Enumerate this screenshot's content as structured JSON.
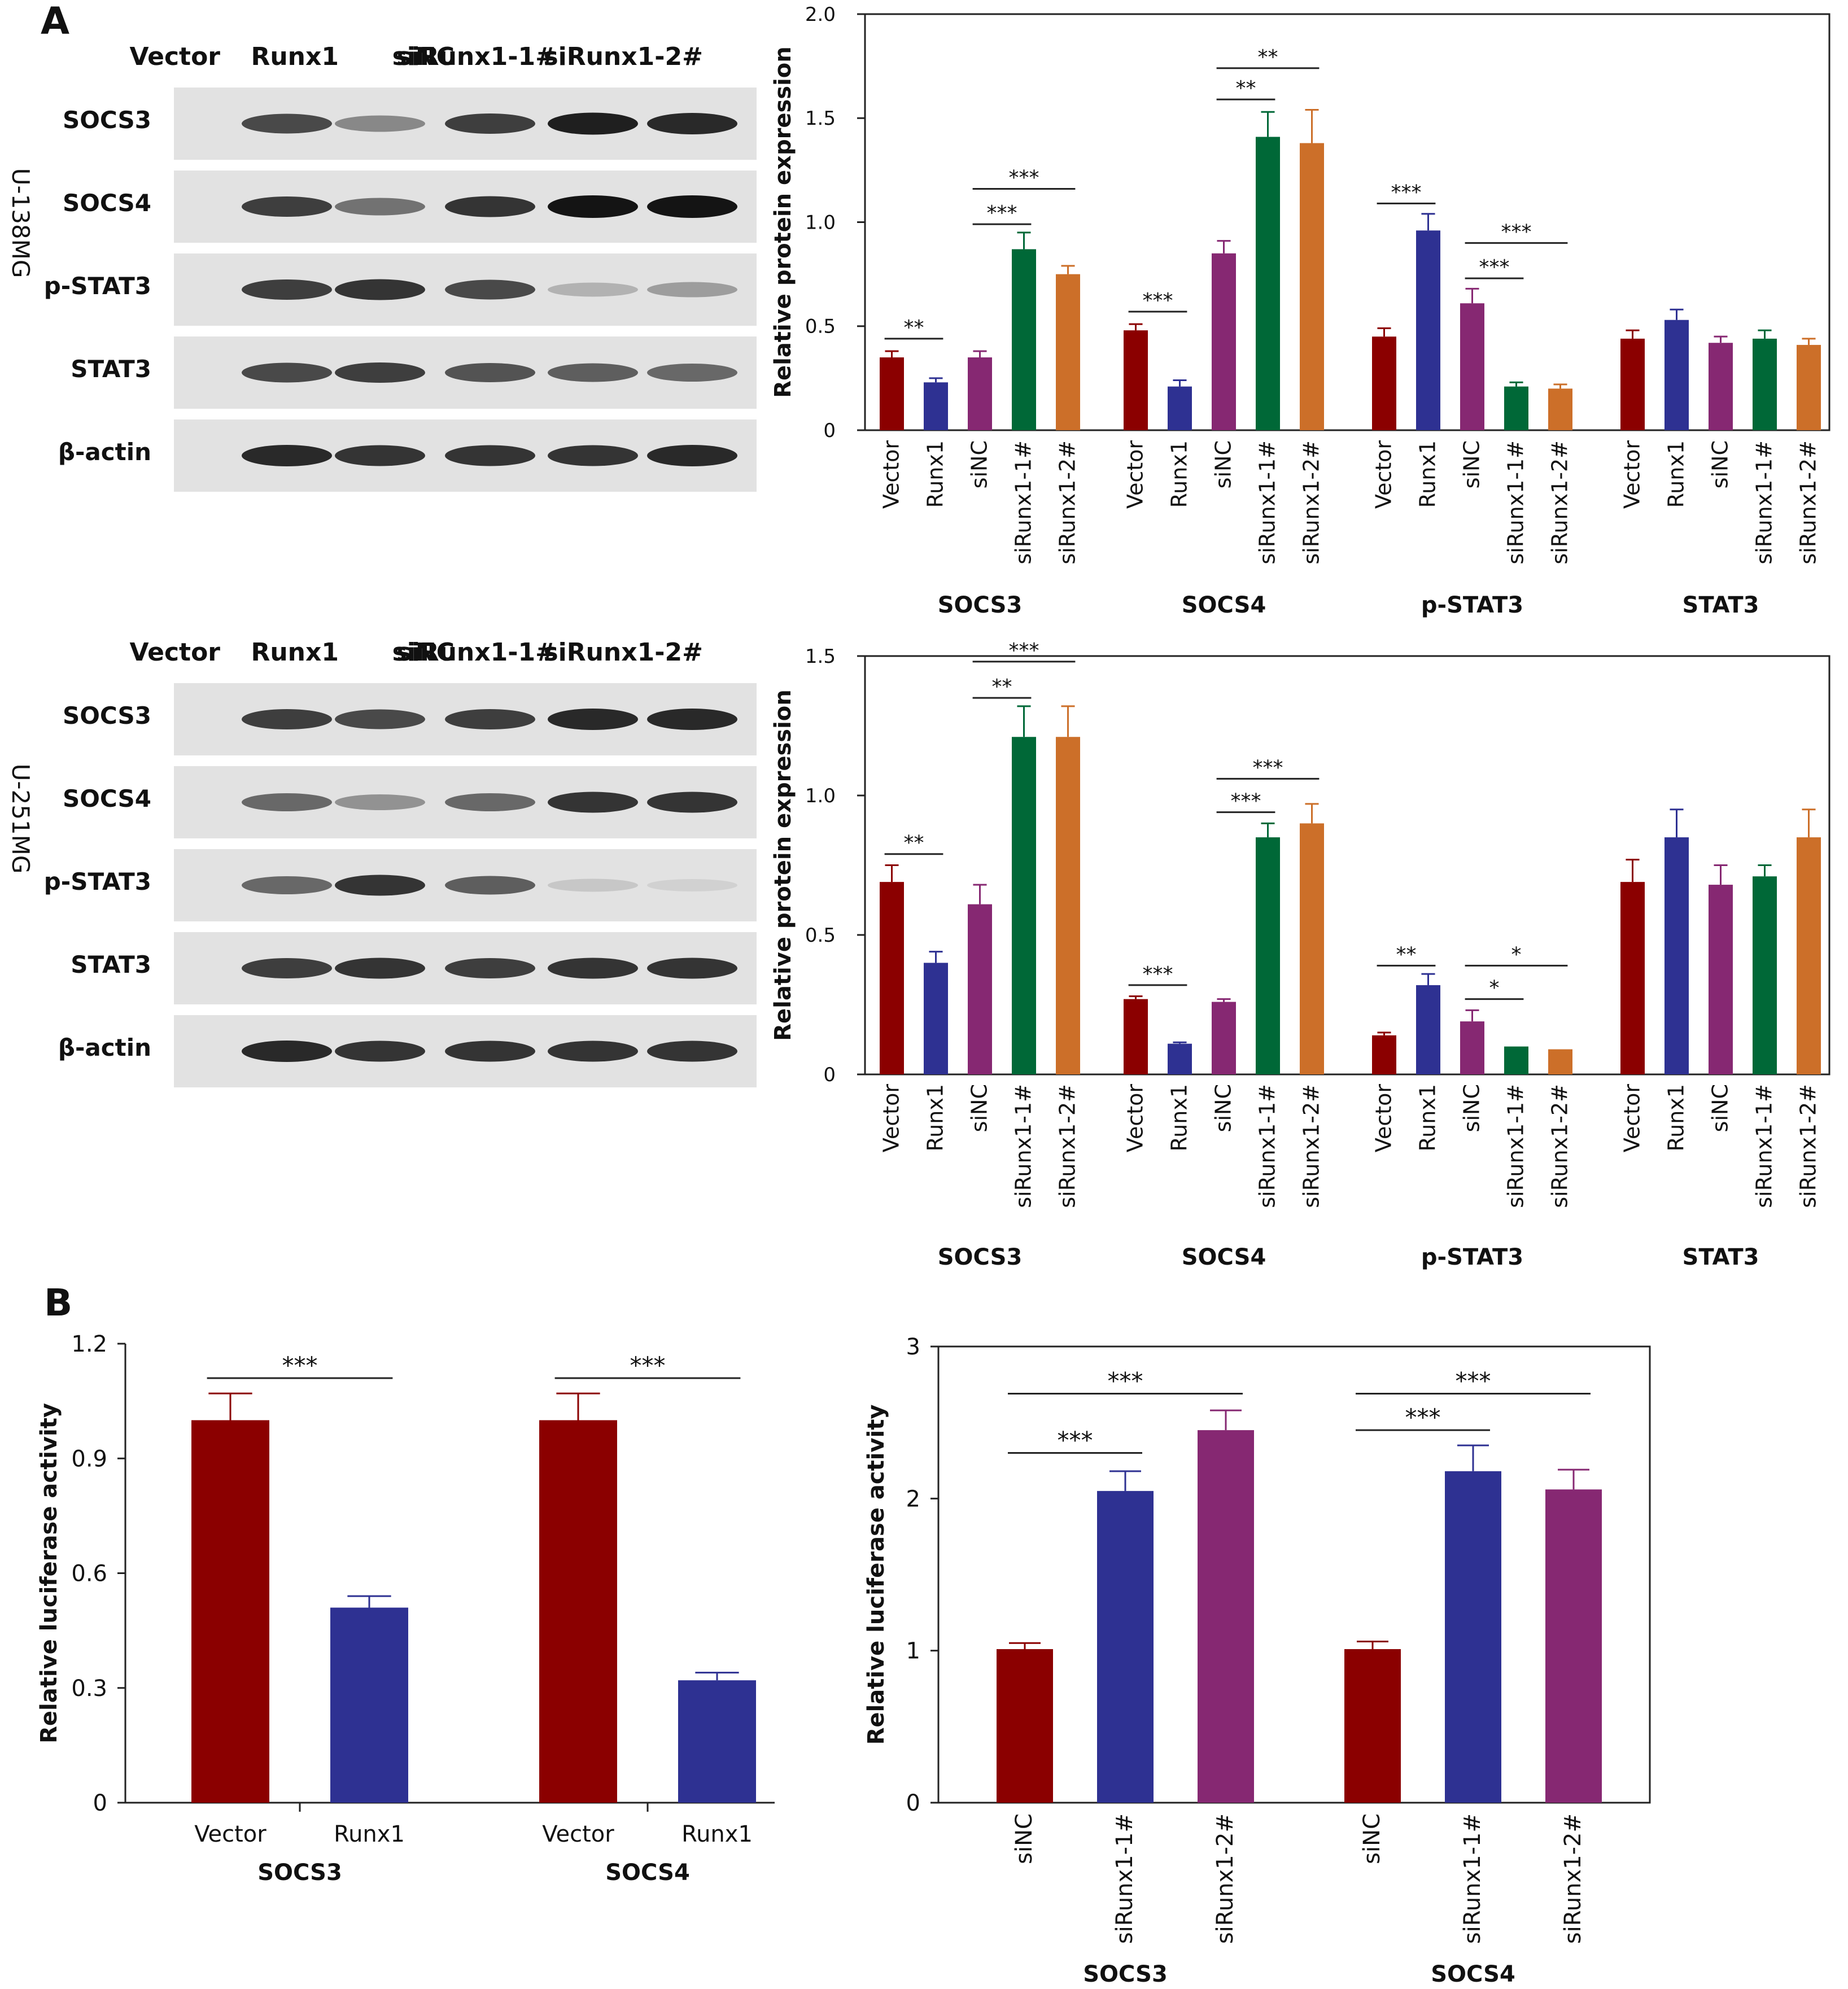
{
  "panels": {
    "A": "A",
    "B": "B"
  },
  "blot_lanes": [
    "Vector",
    "Runx1",
    "siNC",
    "siRunx1-1#",
    "siRunx1-2#"
  ],
  "blot_proteins": [
    "SOCS3",
    "SOCS4",
    "p-STAT3",
    "STAT3",
    "β-actin"
  ],
  "cell_lines": [
    "U-138MG",
    "U-251MG"
  ],
  "blot_intensities": {
    "U-138MG": {
      "SOCS3": [
        0.75,
        0.45,
        0.8,
        0.95,
        0.9
      ],
      "SOCS4": [
        0.8,
        0.55,
        0.85,
        1.0,
        1.0
      ],
      "p-STAT3": [
        0.8,
        0.85,
        0.75,
        0.25,
        0.35
      ],
      "STAT3": [
        0.75,
        0.8,
        0.7,
        0.65,
        0.6
      ],
      "β-actin": [
        0.9,
        0.85,
        0.85,
        0.85,
        0.9
      ]
    },
    "U-251MG": {
      "SOCS3": [
        0.8,
        0.75,
        0.8,
        0.9,
        0.9
      ],
      "SOCS4": [
        0.6,
        0.4,
        0.6,
        0.85,
        0.85
      ],
      "p-STAT3": [
        0.6,
        0.85,
        0.65,
        0.15,
        0.1
      ],
      "STAT3": [
        0.8,
        0.85,
        0.8,
        0.85,
        0.85
      ],
      "β-actin": [
        0.9,
        0.85,
        0.85,
        0.85,
        0.85
      ]
    }
  },
  "chart_data": [
    {
      "type": "bar",
      "ylabel": "Relative protein expression",
      "ylim": [
        0,
        2.0
      ],
      "yticks": [
        "0",
        "0.5",
        "1.0",
        "1.5",
        "2.0"
      ],
      "bar_labels": [
        "Vector",
        "Runx1",
        "siNC",
        "siRunx1-1#",
        "siRunx1-2#"
      ],
      "colors": [
        "#8b0000",
        "#2e3192",
        "#862872",
        "#006837",
        "#cc6f29"
      ],
      "groups": [
        {
          "name": "SOCS3",
          "values": [
            0.35,
            0.23,
            0.35,
            0.87,
            0.75
          ],
          "errors": [
            0.03,
            0.02,
            0.03,
            0.08,
            0.04
          ]
        },
        {
          "name": "SOCS4",
          "values": [
            0.48,
            0.21,
            0.85,
            1.41,
            1.38
          ],
          "errors": [
            0.03,
            0.03,
            0.06,
            0.12,
            0.16
          ]
        },
        {
          "name": "p-STAT3",
          "values": [
            0.45,
            0.96,
            0.61,
            0.21,
            0.2
          ],
          "errors": [
            0.04,
            0.08,
            0.07,
            0.02,
            0.02
          ]
        },
        {
          "name": "STAT3",
          "values": [
            0.44,
            0.53,
            0.42,
            0.44,
            0.41
          ],
          "errors": [
            0.04,
            0.05,
            0.03,
            0.04,
            0.03
          ]
        }
      ],
      "significance": [
        {
          "group": 0,
          "from": 0,
          "to": 1,
          "label": "**",
          "y": 0.44
        },
        {
          "group": 0,
          "from": 2,
          "to": 3,
          "label": "***",
          "y": 0.99
        },
        {
          "group": 0,
          "from": 2,
          "to": 4,
          "label": "***",
          "y": 1.16
        },
        {
          "group": 1,
          "from": 0,
          "to": 1,
          "label": "***",
          "y": 0.57
        },
        {
          "group": 1,
          "from": 2,
          "to": 3,
          "label": "**",
          "y": 1.59
        },
        {
          "group": 1,
          "from": 2,
          "to": 4,
          "label": "**",
          "y": 1.74
        },
        {
          "group": 2,
          "from": 0,
          "to": 1,
          "label": "***",
          "y": 1.09
        },
        {
          "group": 2,
          "from": 2,
          "to": 3,
          "label": "***",
          "y": 0.73
        },
        {
          "group": 2,
          "from": 2,
          "to": 4,
          "label": "***",
          "y": 0.9
        }
      ]
    },
    {
      "type": "bar",
      "ylabel": "Relative protein expression",
      "ylim": [
        0,
        1.5
      ],
      "yticks": [
        "0",
        "0.5",
        "1.0",
        "1.5"
      ],
      "bar_labels": [
        "Vector",
        "Runx1",
        "siNC",
        "siRunx1-1#",
        "siRunx1-2#"
      ],
      "colors": [
        "#8b0000",
        "#2e3192",
        "#862872",
        "#006837",
        "#cc6f29"
      ],
      "groups": [
        {
          "name": "SOCS3",
          "values": [
            0.69,
            0.4,
            0.61,
            1.21,
            1.21
          ],
          "errors": [
            0.06,
            0.04,
            0.07,
            0.11,
            0.11
          ]
        },
        {
          "name": "SOCS4",
          "values": [
            0.27,
            0.11,
            0.26,
            0.85,
            0.9
          ],
          "errors": [
            0.01,
            0.005,
            0.01,
            0.05,
            0.07
          ]
        },
        {
          "name": "p-STAT3",
          "values": [
            0.14,
            0.32,
            0.19,
            0.1,
            0.09
          ],
          "errors": [
            0.01,
            0.04,
            0.04,
            0.0,
            0.0
          ]
        },
        {
          "name": "STAT3",
          "values": [
            0.69,
            0.85,
            0.68,
            0.71,
            0.85
          ],
          "errors": [
            0.08,
            0.1,
            0.07,
            0.04,
            0.1
          ]
        }
      ],
      "significance": [
        {
          "group": 0,
          "from": 0,
          "to": 1,
          "label": "**",
          "y": 0.79
        },
        {
          "group": 0,
          "from": 2,
          "to": 3,
          "label": "**",
          "y": 1.35
        },
        {
          "group": 0,
          "from": 2,
          "to": 4,
          "label": "***",
          "y": 1.48
        },
        {
          "group": 1,
          "from": 0,
          "to": 1,
          "label": "***",
          "y": 0.32
        },
        {
          "group": 1,
          "from": 2,
          "to": 3,
          "label": "***",
          "y": 0.94
        },
        {
          "group": 1,
          "from": 2,
          "to": 4,
          "label": "***",
          "y": 1.06
        },
        {
          "group": 2,
          "from": 0,
          "to": 1,
          "label": "**",
          "y": 0.39
        },
        {
          "group": 2,
          "from": 2,
          "to": 3,
          "label": "*",
          "y": 0.27
        },
        {
          "group": 2,
          "from": 2,
          "to": 4,
          "label": "*",
          "y": 0.39
        }
      ]
    },
    {
      "type": "bar",
      "ylabel": "Relative luciferase activity",
      "ylim": [
        0,
        1.2
      ],
      "yticks": [
        "0",
        "0.3",
        "0.6",
        "0.9",
        "1.2"
      ],
      "bar_labels": [
        "Vector",
        "Runx1"
      ],
      "colors": [
        "#8b0000",
        "#2e3192"
      ],
      "groups": [
        {
          "name": "SOCS3",
          "values": [
            1.0,
            0.51
          ],
          "errors": [
            0.07,
            0.03
          ]
        },
        {
          "name": "SOCS4",
          "values": [
            1.0,
            0.32
          ],
          "errors": [
            0.07,
            0.02
          ]
        }
      ],
      "significance": [
        {
          "group": 0,
          "from": 0,
          "to": 1,
          "label": "***",
          "y": 1.11
        },
        {
          "group": 1,
          "from": 0,
          "to": 1,
          "label": "***",
          "y": 1.11
        }
      ]
    },
    {
      "type": "bar",
      "ylabel": "Relative luciferase activity",
      "ylim": [
        0,
        3
      ],
      "yticks": [
        "0",
        "1",
        "2",
        "3"
      ],
      "bar_labels": [
        "siNC",
        "siRunx1-1#",
        "siRunx1-2#"
      ],
      "colors": [
        "#8b0000",
        "#2e3192",
        "#862872"
      ],
      "groups": [
        {
          "name": "SOCS3",
          "values": [
            1.01,
            2.05,
            2.45
          ],
          "errors": [
            0.04,
            0.13,
            0.13
          ]
        },
        {
          "name": "SOCS4",
          "values": [
            1.01,
            2.18,
            2.06
          ],
          "errors": [
            0.05,
            0.17,
            0.13
          ]
        }
      ],
      "significance": [
        {
          "group": 0,
          "from": 0,
          "to": 1,
          "label": "***",
          "y": 2.3
        },
        {
          "group": 0,
          "from": 0,
          "to": 2,
          "label": "***",
          "y": 2.69
        },
        {
          "group": 1,
          "from": 0,
          "to": 1,
          "label": "***",
          "y": 2.45
        },
        {
          "group": 1,
          "from": 0,
          "to": 2,
          "label": "***",
          "y": 2.69
        }
      ]
    }
  ]
}
